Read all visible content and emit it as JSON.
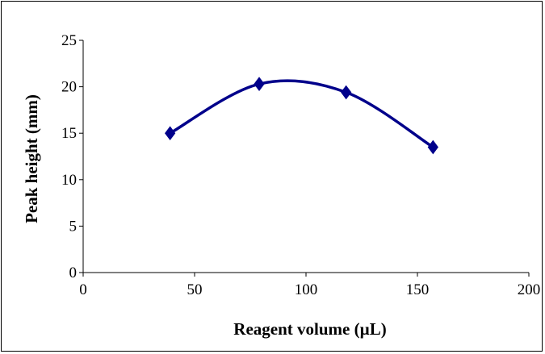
{
  "chart_data": {
    "type": "line",
    "title": "",
    "xlabel": "Reagent volume (µL)",
    "ylabel": "Peak height (mm)",
    "xlim": [
      0,
      200
    ],
    "ylim": [
      0,
      25
    ],
    "x_ticks": [
      0,
      50,
      100,
      150,
      200
    ],
    "y_ticks": [
      0,
      5,
      10,
      15,
      20,
      25
    ],
    "grid": false,
    "legend": "none",
    "series": [
      {
        "x": [
          39,
          79,
          118,
          157
        ],
        "y": [
          15.0,
          20.3,
          19.4,
          13.5
        ],
        "color": "#00008b",
        "marker": "diamond",
        "smooth": true
      }
    ]
  }
}
